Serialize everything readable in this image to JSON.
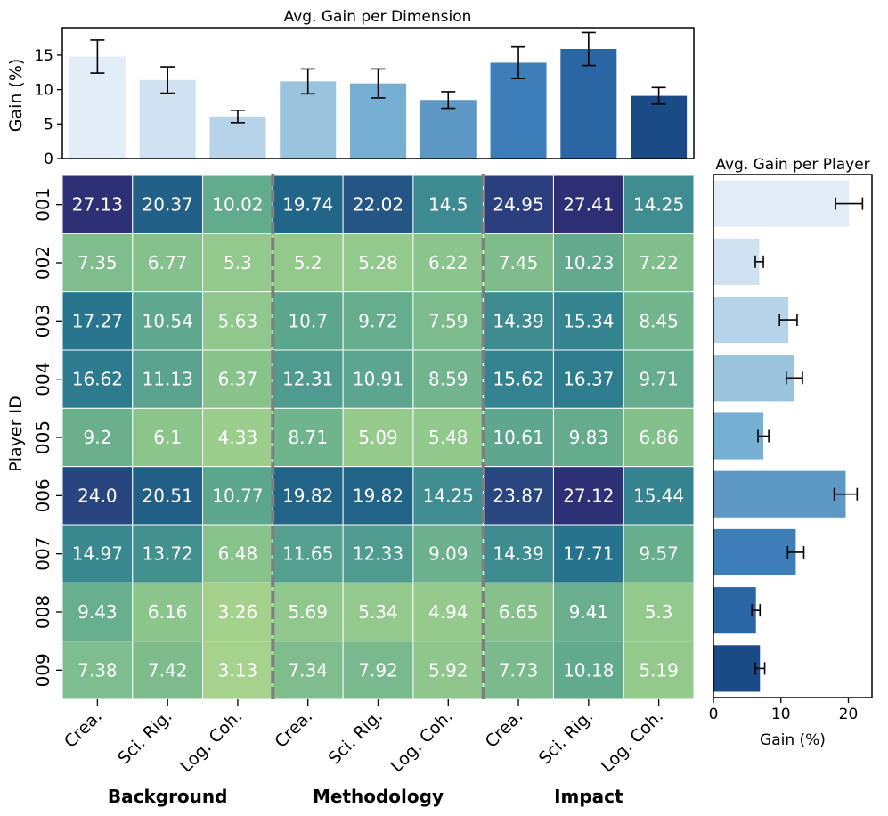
{
  "chart_data": [
    {
      "type": "bar",
      "title": "Avg. Gain per Dimension",
      "ylabel": "Gain (%)",
      "ylim": [
        0,
        19
      ],
      "yticks": [
        0,
        5,
        10,
        15
      ],
      "categories": [
        "Crea.",
        "Sci. Rig.",
        "Log. Coh.",
        "Crea.",
        "Sci. Rig.",
        "Log. Coh.",
        "Crea.",
        "Sci. Rig.",
        "Log. Coh."
      ],
      "values": [
        14.8,
        11.4,
        6.1,
        11.2,
        10.9,
        8.5,
        13.9,
        15.9,
        9.1
      ],
      "error": [
        2.4,
        1.9,
        0.9,
        1.8,
        2.1,
        1.2,
        2.3,
        2.4,
        1.2
      ],
      "colors": [
        "#e3edf8",
        "#d0e1f2",
        "#b7d3e9",
        "#9ac3dd",
        "#76afd4",
        "#5e98c5",
        "#3d7eb8",
        "#2b66a4",
        "#1b4b86"
      ]
    },
    {
      "type": "heatmap",
      "ylabel": "Player ID",
      "rows": [
        "001",
        "002",
        "003",
        "004",
        "005",
        "006",
        "007",
        "008",
        "009"
      ],
      "columns": [
        "Crea.",
        "Sci. Rig.",
        "Log. Coh.",
        "Crea.",
        "Sci. Rig.",
        "Log. Coh.",
        "Crea.",
        "Sci. Rig.",
        "Log. Coh."
      ],
      "groups": [
        "Background",
        "Methodology",
        "Impact"
      ],
      "cells": [
        [
          "27.13",
          "20.37",
          "10.02",
          "19.74",
          "22.02",
          "14.5",
          "24.95",
          "27.41",
          "14.25"
        ],
        [
          "7.35",
          "6.77",
          "5.3",
          "5.2",
          "5.28",
          "6.22",
          "7.45",
          "10.23",
          "7.22"
        ],
        [
          "17.27",
          "10.54",
          "5.63",
          "10.7",
          "9.72",
          "7.59",
          "14.39",
          "15.34",
          "8.45"
        ],
        [
          "16.62",
          "11.13",
          "6.37",
          "12.31",
          "10.91",
          "8.59",
          "15.62",
          "16.37",
          "9.71"
        ],
        [
          "9.2",
          "6.1",
          "4.33",
          "8.71",
          "5.09",
          "5.48",
          "10.61",
          "9.83",
          "6.86"
        ],
        [
          "24.0",
          "20.51",
          "10.77",
          "19.82",
          "19.82",
          "14.25",
          "23.87",
          "27.12",
          "15.44"
        ],
        [
          "14.97",
          "13.72",
          "6.48",
          "11.65",
          "12.33",
          "9.09",
          "14.39",
          "17.71",
          "9.57"
        ],
        [
          "9.43",
          "6.16",
          "3.26",
          "5.69",
          "5.34",
          "4.94",
          "6.65",
          "9.41",
          "5.3"
        ],
        [
          "7.38",
          "7.42",
          "3.13",
          "7.34",
          "7.92",
          "5.92",
          "7.73",
          "10.18",
          "5.19"
        ]
      ],
      "colorscale": [
        "#a6d38c",
        "#8cc58c",
        "#6ab08d",
        "#4f9b8f",
        "#348490",
        "#1f6c8a",
        "#245785",
        "#2b3e7e",
        "#2e2a70"
      ],
      "vmin": 3,
      "vmax": 28
    },
    {
      "type": "bar",
      "orientation": "horizontal",
      "title": "Avg. Gain per Player",
      "xlabel": "Gain (%)",
      "xlim": [
        0,
        23.5
      ],
      "xticks": [
        0,
        10,
        20
      ],
      "categories": [
        "001",
        "002",
        "003",
        "004",
        "005",
        "006",
        "007",
        "008",
        "009"
      ],
      "values": [
        20.1,
        6.8,
        11.1,
        12.0,
        7.4,
        19.6,
        12.2,
        6.3,
        6.9
      ],
      "error": [
        2.0,
        0.6,
        1.3,
        1.2,
        0.8,
        1.7,
        1.2,
        0.6,
        0.7
      ],
      "colors": [
        "#e3edf8",
        "#d0e1f2",
        "#b7d3e9",
        "#9ac3dd",
        "#76afd4",
        "#5e98c5",
        "#3d7eb8",
        "#2b66a4",
        "#1b4b86"
      ]
    }
  ]
}
